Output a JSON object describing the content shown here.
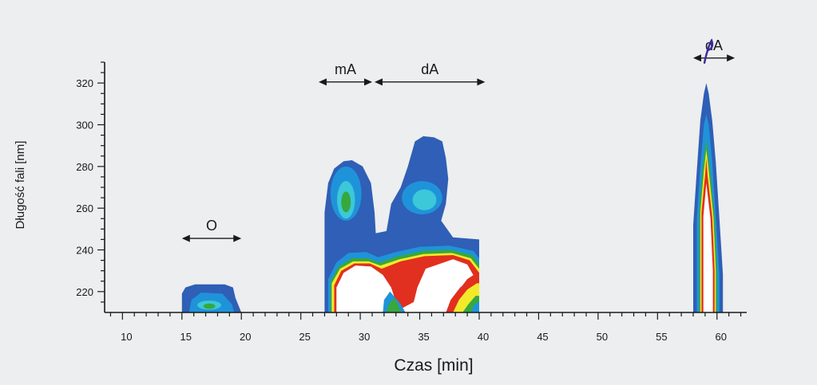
{
  "chart_data": {
    "type": "heatmap",
    "xlabel": "Czas [min]",
    "ylabel": "Długość fali [nm]",
    "xlim": [
      8.5,
      62.5
    ],
    "ylim": [
      210,
      330
    ],
    "x_ticks": [
      "10",
      "15",
      "20",
      "25",
      "30",
      "35",
      "40",
      "45",
      "50",
      "55",
      "60"
    ],
    "y_ticks": [
      "220",
      "240",
      "260",
      "280",
      "300",
      "320"
    ],
    "x_tick_values": [
      10,
      15,
      20,
      25,
      30,
      35,
      40,
      45,
      50,
      55,
      60
    ],
    "y_tick_values": [
      220,
      240,
      260,
      280,
      300,
      320
    ],
    "grid": false,
    "colors": {
      "outer": "#2f5fb6",
      "mid": "#1f93d9",
      "cyan": "#3cc8d8",
      "green": "#36a83d",
      "yellow": "#f2ea2b",
      "red": "#e1301f",
      "core": "#ffffff"
    },
    "peaks": [
      {
        "name": "O",
        "time_range": [
          15,
          20
        ],
        "lambda_max": 223
      },
      {
        "name": "mA",
        "time_range": [
          27,
          31
        ],
        "lambda_max": 285
      },
      {
        "name": "dA",
        "time_range": [
          31,
          40
        ],
        "lambda_max": 294
      },
      {
        "name": "dA",
        "time_range": [
          58,
          60.5
        ],
        "lambda_max": 320
      }
    ],
    "annotations": [
      {
        "label": "O",
        "x_from": 15,
        "x_to": 20,
        "y": 245.5
      },
      {
        "label": "mA",
        "x_from": 26.5,
        "x_to": 31,
        "y": 320.5
      },
      {
        "label": "dA",
        "x_from": 31.2,
        "x_to": 40.5,
        "y": 320.5
      },
      {
        "label": "dA",
        "x_from": 58,
        "x_to": 61.5,
        "y": 332
      }
    ]
  }
}
